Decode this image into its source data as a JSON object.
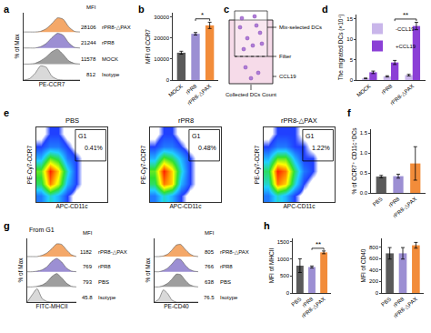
{
  "chart_data": [
    {
      "type": "area",
      "panel": "a",
      "xlabel": "PE-CCR7",
      "ylabel": "% of Max",
      "tick_labels": false,
      "xlim": [
        0,
        100
      ],
      "ylim": [
        0,
        105
      ],
      "annotations": [
        "MFI"
      ],
      "x": [
        0,
        10,
        20,
        30,
        40,
        50,
        60,
        70,
        80,
        90,
        100
      ],
      "series": [
        {
          "name": "rPR8-△PAX",
          "mfi": 28106,
          "color": "#f4a869",
          "values": [
            75,
            75,
            75,
            76,
            80,
            88,
            97,
            95,
            83,
            76,
            75
          ]
        },
        {
          "name": "rPR8",
          "mfi": 21244,
          "color": "#9c8fd3",
          "values": [
            50,
            50,
            50,
            52,
            57,
            66,
            73,
            70,
            58,
            51,
            50
          ]
        },
        {
          "name": "MOCK",
          "mfi": 11578,
          "color": "#9e9e9e",
          "values": [
            25,
            25,
            26,
            30,
            36,
            44,
            48,
            40,
            30,
            26,
            25
          ]
        },
        {
          "name": "Isotype",
          "mfi": 812,
          "color": "#d9d9d9",
          "values": [
            0,
            2,
            10,
            22,
            20,
            6,
            1,
            0,
            0,
            0,
            0
          ]
        }
      ]
    },
    {
      "type": "bar",
      "panel": "b",
      "ylabel": "MFI of CCR7",
      "categories": [
        "MOCK",
        "rPR8",
        "rPR8-△PAX"
      ],
      "values": [
        13000,
        22000,
        26000
      ],
      "errors": [
        700,
        600,
        1500
      ],
      "colors": [
        "#5a5a5a",
        "#9c8fd3",
        "#f28c3a"
      ],
      "ylim": [
        0,
        32000
      ],
      "yticks": [
        0,
        10000,
        20000,
        30000
      ],
      "annotations": [
        {
          "text": "*",
          "between": [
            "rPR8",
            "rPR8-△PAX"
          ]
        }
      ]
    },
    {
      "type": "diagram",
      "panel": "c",
      "labels": {
        "cells": "Mix-selected DCs",
        "filter": "Filter",
        "medium": "CCL19",
        "collected": "Collected DCs Count"
      }
    },
    {
      "type": "bar",
      "panel": "d",
      "ylabel": "The migrated DCs (×10⁴)",
      "categories": [
        "MOCK",
        "rPR8",
        "rPR8-△PAX"
      ],
      "series": [
        {
          "name": "-CCL19",
          "color": "#c9b6ea",
          "values": [
            0.4,
            0.9,
            1.2
          ],
          "errors": [
            0.1,
            0.15,
            0.2
          ]
        },
        {
          "name": "+CCL19",
          "color": "#8b3fd6",
          "values": [
            1.9,
            4.3,
            13.2
          ],
          "errors": [
            0.3,
            0.5,
            0.9
          ]
        }
      ],
      "ylim": [
        0,
        16
      ],
      "yticks": [
        0,
        5,
        10,
        15
      ],
      "legend": "upper left",
      "annotations": [
        {
          "text": "**",
          "between": [
            "rPR8",
            "rPR8-△PAX"
          ],
          "series": "+CCL19"
        }
      ]
    },
    {
      "type": "heatmap",
      "panel": "e",
      "title": "PBS",
      "xlabel": "APC-CD11c",
      "ylabel": "PE-Cy7-CCR7",
      "tick_labels": false,
      "xlim": [
        0,
        100
      ],
      "ylim": [
        0,
        100
      ],
      "zlim": [
        0,
        10
      ],
      "x": [
        6.25,
        18.75,
        31.25,
        43.75,
        56.25,
        68.75,
        81.25,
        93.75
      ],
      "y": [
        8,
        25,
        42,
        58,
        75,
        92
      ],
      "cells": [
        [
          2,
          4,
          3,
          1,
          0,
          0,
          0,
          0
        ],
        [
          5,
          9,
          7,
          3,
          1,
          0,
          0,
          0
        ],
        [
          6,
          10,
          8,
          4,
          1,
          0,
          0,
          0
        ],
        [
          3,
          6,
          5,
          2,
          1,
          0,
          0,
          0
        ],
        [
          1,
          2,
          2,
          1,
          0,
          0,
          0,
          0
        ],
        [
          0,
          1,
          1,
          0,
          0,
          0,
          0,
          0
        ]
      ],
      "gate": {
        "name": "G1",
        "x": [
          55,
          98
        ],
        "y": [
          55,
          97
        ],
        "text": "0.41%"
      }
    },
    {
      "type": "heatmap",
      "title": "rPR8",
      "xlabel": "APC-CD11c",
      "ylabel": "PE-Cy7-CCR7",
      "tick_labels": false,
      "xlim": [
        0,
        100
      ],
      "ylim": [
        0,
        100
      ],
      "zlim": [
        0,
        10
      ],
      "x": [
        6.25,
        18.75,
        31.25,
        43.75,
        56.25,
        68.75,
        81.25,
        93.75
      ],
      "y": [
        8,
        25,
        42,
        58,
        75,
        92
      ],
      "cells": [
        [
          2,
          4,
          3,
          1,
          0,
          0,
          0,
          0
        ],
        [
          5,
          9,
          8,
          3,
          1,
          0,
          0,
          0
        ],
        [
          6,
          10,
          8,
          4,
          1,
          0,
          0,
          0
        ],
        [
          3,
          6,
          5,
          3,
          1,
          0,
          0,
          0
        ],
        [
          1,
          2,
          2,
          1,
          0,
          0,
          0,
          0
        ],
        [
          0,
          1,
          1,
          0,
          0,
          0,
          0,
          0
        ]
      ],
      "gate": {
        "name": "G1",
        "x": [
          55,
          98
        ],
        "y": [
          55,
          97
        ],
        "text": "0.48%"
      }
    },
    {
      "type": "heatmap",
      "title": "rPR8-△PAX",
      "xlabel": "APC-CD11c",
      "ylabel": "PE-Cy7-CCR7",
      "tick_labels": false,
      "xlim": [
        0,
        100
      ],
      "ylim": [
        0,
        100
      ],
      "zlim": [
        0,
        10
      ],
      "x": [
        6.25,
        18.75,
        31.25,
        43.75,
        56.25,
        68.75,
        81.25,
        93.75
      ],
      "y": [
        8,
        25,
        42,
        58,
        75,
        92
      ],
      "cells": [
        [
          2,
          4,
          3,
          1,
          0,
          0,
          0,
          0
        ],
        [
          4,
          9,
          8,
          4,
          1,
          0,
          0,
          0
        ],
        [
          5,
          10,
          9,
          5,
          2,
          1,
          0,
          0
        ],
        [
          3,
          6,
          6,
          3,
          1,
          1,
          0,
          0
        ],
        [
          1,
          2,
          2,
          1,
          1,
          0,
          0,
          0
        ],
        [
          0,
          1,
          1,
          1,
          0,
          0,
          0,
          0
        ]
      ],
      "gate": {
        "name": "G1",
        "x": [
          55,
          98
        ],
        "y": [
          55,
          97
        ],
        "text": "1.22%"
      }
    },
    {
      "type": "bar",
      "panel": "f",
      "ylabel": "% of CCR7⁺ CD11c⁺DCs",
      "categories": [
        "PBS",
        "rPR8",
        "rPR8-△PAX"
      ],
      "values": [
        0.41,
        0.42,
        0.74
      ],
      "errors": [
        0.03,
        0.05,
        0.42
      ],
      "colors": [
        "#5a5a5a",
        "#9c8fd3",
        "#f28c3a"
      ],
      "ylim": [
        0,
        1.6
      ],
      "yticks": [
        {
          "value": 0,
          "label": "0.0"
        },
        0.5,
        {
          "value": 1,
          "label": "1.0"
        },
        1.5
      ]
    },
    {
      "type": "area",
      "panel": "g",
      "subtitle": "From G1",
      "xlabel": "FITC-MHCII",
      "ylabel": "% of Max",
      "tick_labels": false,
      "xlim": [
        0,
        100
      ],
      "ylim": [
        0,
        105
      ],
      "annotations": [
        "MFI"
      ],
      "x": [
        0,
        10,
        20,
        30,
        40,
        50,
        60,
        70,
        80,
        90,
        100
      ],
      "series": [
        {
          "name": "rPR8-△PAX",
          "mfi": 1182,
          "color": "#f4a869",
          "values": [
            75,
            75,
            75,
            77,
            81,
            88,
            96,
            95,
            86,
            78,
            75
          ]
        },
        {
          "name": "rPR8",
          "mfi": 769,
          "color": "#9c8fd3",
          "values": [
            50,
            50,
            51,
            53,
            58,
            67,
            72,
            66,
            56,
            51,
            50
          ]
        },
        {
          "name": "PBS",
          "mfi": 793,
          "color": "#9e9e9e",
          "values": [
            25,
            25,
            26,
            28,
            33,
            42,
            47,
            40,
            31,
            26,
            25
          ]
        },
        {
          "name": "Isotype",
          "mfi": 45.8,
          "color": "#d9d9d9",
          "values": [
            0,
            12,
            22,
            6,
            1,
            0,
            0,
            0,
            0,
            0,
            0
          ]
        }
      ]
    },
    {
      "type": "area",
      "xlabel": "PE-CD40",
      "ylabel": "% of Max",
      "tick_labels": false,
      "xlim": [
        0,
        100
      ],
      "ylim": [
        0,
        105
      ],
      "annotations": [
        "MFI"
      ],
      "x": [
        0,
        10,
        20,
        30,
        40,
        50,
        60,
        70,
        80,
        90,
        100
      ],
      "series": [
        {
          "name": "rPR8-△PAX",
          "mfi": 805,
          "color": "#f4a869",
          "values": [
            75,
            75,
            76,
            79,
            86,
            94,
            95,
            87,
            80,
            76,
            75
          ]
        },
        {
          "name": "rPR8",
          "mfi": 766,
          "color": "#9c8fd3",
          "values": [
            50,
            50,
            52,
            56,
            63,
            71,
            70,
            61,
            54,
            51,
            50
          ]
        },
        {
          "name": "PBS",
          "mfi": 638,
          "color": "#9e9e9e",
          "values": [
            25,
            25,
            27,
            31,
            38,
            46,
            45,
            36,
            29,
            26,
            25
          ]
        },
        {
          "name": "Isotype",
          "mfi": 76.5,
          "color": "#d9d9d9",
          "values": [
            0,
            5,
            20,
            14,
            3,
            0,
            0,
            0,
            0,
            0,
            0
          ]
        }
      ]
    },
    {
      "type": "bar",
      "panel": "h",
      "ylabel": "MFI of MHCII",
      "categories": [
        "PBS",
        "rPR8",
        "rPR8-△PAX"
      ],
      "values": [
        800,
        760,
        1190
      ],
      "errors": [
        200,
        30,
        40
      ],
      "colors": [
        "#5a5a5a",
        "#9c8fd3",
        "#f28c3a"
      ],
      "ylim": [
        0,
        1600
      ],
      "yticks": [
        0,
        500,
        1000,
        1500
      ],
      "annotations": [
        {
          "text": "**",
          "between": [
            "rPR8",
            "rPR8-△PAX"
          ]
        }
      ]
    },
    {
      "type": "bar",
      "ylabel": "MFI of CD40",
      "categories": [
        "PBS",
        "rPR8",
        "rPR8-△PAX"
      ],
      "values": [
        690,
        690,
        830
      ],
      "errors": [
        100,
        100,
        50
      ],
      "colors": [
        "#5a5a5a",
        "#9c8fd3",
        "#f28c3a"
      ],
      "ylim": [
        0,
        950
      ],
      "yticks": [
        0,
        200,
        400,
        600,
        800
      ]
    }
  ]
}
